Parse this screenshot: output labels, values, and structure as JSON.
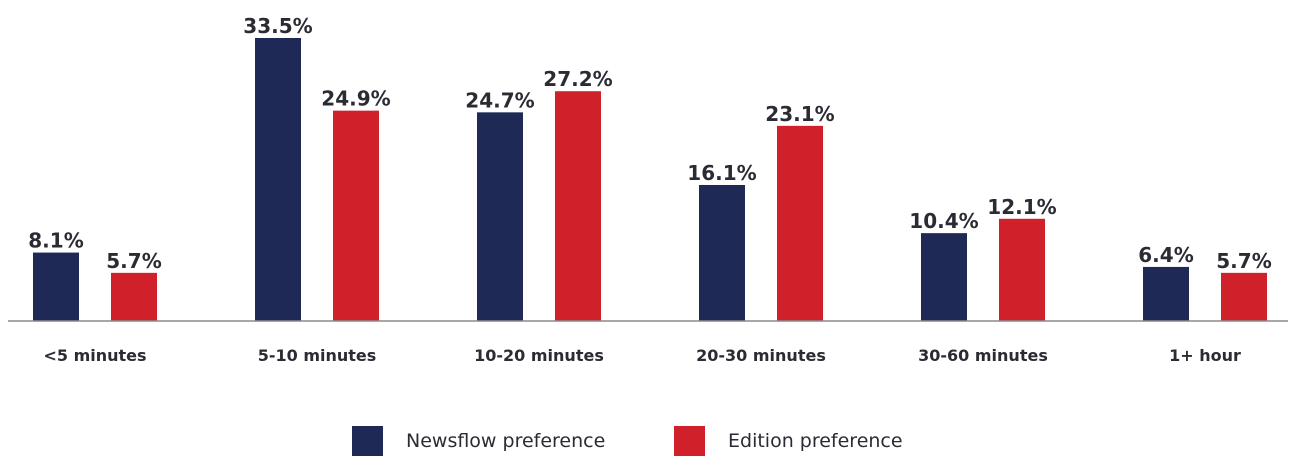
{
  "chart_data": {
    "type": "bar",
    "categories": [
      "<5 minutes",
      "5-10 minutes",
      "10-20 minutes",
      "20-30 minutes",
      "30-60 minutes",
      "1+ hour"
    ],
    "series": [
      {
        "name": "Newsflow preference",
        "color": "#1e2a55",
        "values": [
          8.1,
          33.5,
          24.7,
          16.1,
          10.4,
          6.4
        ],
        "labels": [
          "8.1%",
          "33.5%",
          "24.7%",
          "16.1%",
          "10.4%",
          "6.4%"
        ]
      },
      {
        "name": "Edition preference",
        "color": "#d0202a",
        "values": [
          5.7,
          24.9,
          27.2,
          23.1,
          12.1,
          5.7
        ],
        "labels": [
          "5.7%",
          "24.9%",
          "27.2%",
          "23.1%",
          "12.1%",
          "5.7%"
        ]
      }
    ],
    "ylim": [
      0,
      33.5
    ],
    "grid": false,
    "legend_position": "bottom-center"
  }
}
